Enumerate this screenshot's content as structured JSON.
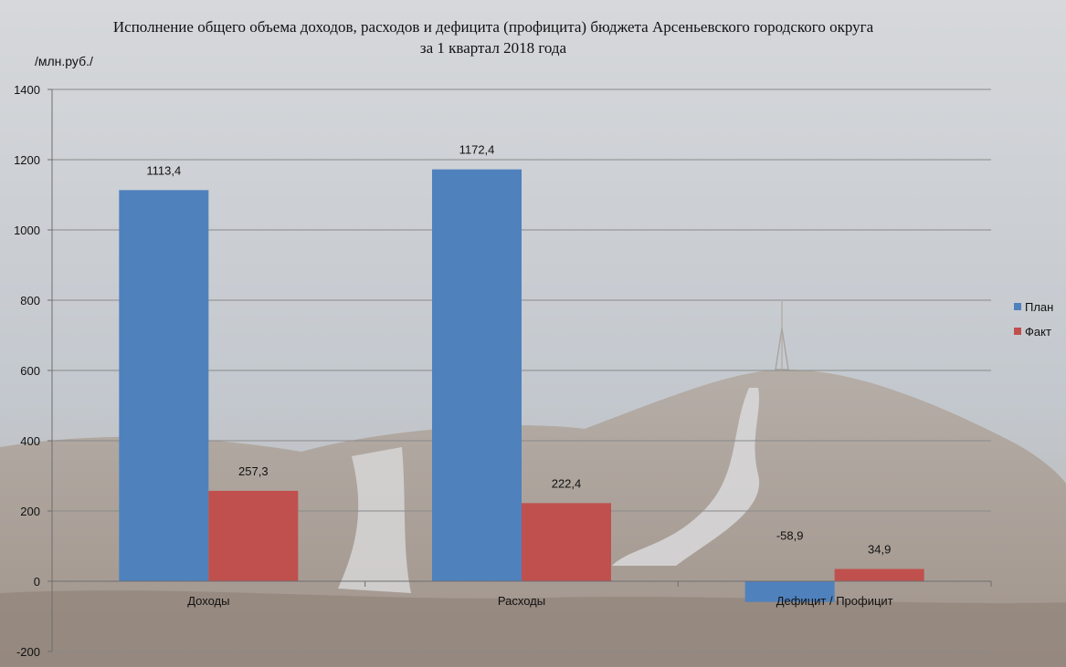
{
  "chart_data": {
    "type": "bar",
    "title_line1": "Исполнение общего объема доходов, расходов и дефицита (профицита) бюджета Арсеньевского городского округа",
    "title_line2": "за 1 квартал 2018 года",
    "ylabel": "/млн.руб./",
    "xlabel": "",
    "ylim": [
      -200,
      1400
    ],
    "yticks": [
      -200,
      0,
      200,
      400,
      600,
      800,
      1000,
      1200,
      1400
    ],
    "grid": true,
    "legend_position": "right",
    "categories": [
      "Доходы",
      "Расходы",
      "Дефицит / Профицит"
    ],
    "series": [
      {
        "name": "План",
        "color": "#4f81bd",
        "values": [
          1113.4,
          1172.4,
          -58.9
        ],
        "labels": [
          "1113,4",
          "1172,4",
          "-58,9"
        ]
      },
      {
        "name": "Факт",
        "color": "#c0504d",
        "values": [
          257.3,
          222.4,
          34.9
        ],
        "labels": [
          "257,3",
          "222,4",
          "34,9"
        ]
      }
    ]
  }
}
